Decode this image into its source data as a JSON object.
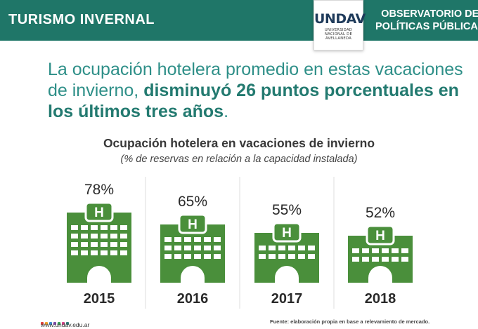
{
  "header": {
    "title": "TURISMO INVERNAL",
    "logo_word": "UNDAV",
    "logo_sub": "UNIVERSIDAD\nNACIONAL DE\nAVELLANEDA",
    "right_title_line1": "OBSERVATORIO DE",
    "right_title_line2": "POLÍTICAS PÚBLICAS"
  },
  "headline": {
    "normal": "La ocupación hotelera promedio en estas vacaciones de invierno, ",
    "bold": "disminuyó 26 puntos porcentuales en los últimos tres años",
    "end": "."
  },
  "chart_data": {
    "type": "bar",
    "title": "Ocupación hotelera en vacaciones de invierno",
    "subtitle": "(% de reservas en relación a la capacidad instalada)",
    "categories": [
      "2015",
      "2016",
      "2017",
      "2018"
    ],
    "values": [
      78,
      65,
      55,
      52
    ],
    "value_labels": [
      "78%",
      "65%",
      "55%",
      "52%"
    ],
    "unit": "%",
    "mark": "hotel building icon scaled by value",
    "bar_color": "#4a8f3b",
    "grid": false
  },
  "footer": {
    "url": "www.undav.edu.ar",
    "source": "Fuente: elaboración propia en base a relevamiento de mercado."
  },
  "colors": {
    "header_bg": "#1f7668",
    "headline": "#2e8f88",
    "headline_bold": "#237a70",
    "building": "#4a8f3b",
    "divider": "#dddddd"
  },
  "icons": [
    "hotel-building-icon",
    "hotel-h-sign-icon"
  ]
}
